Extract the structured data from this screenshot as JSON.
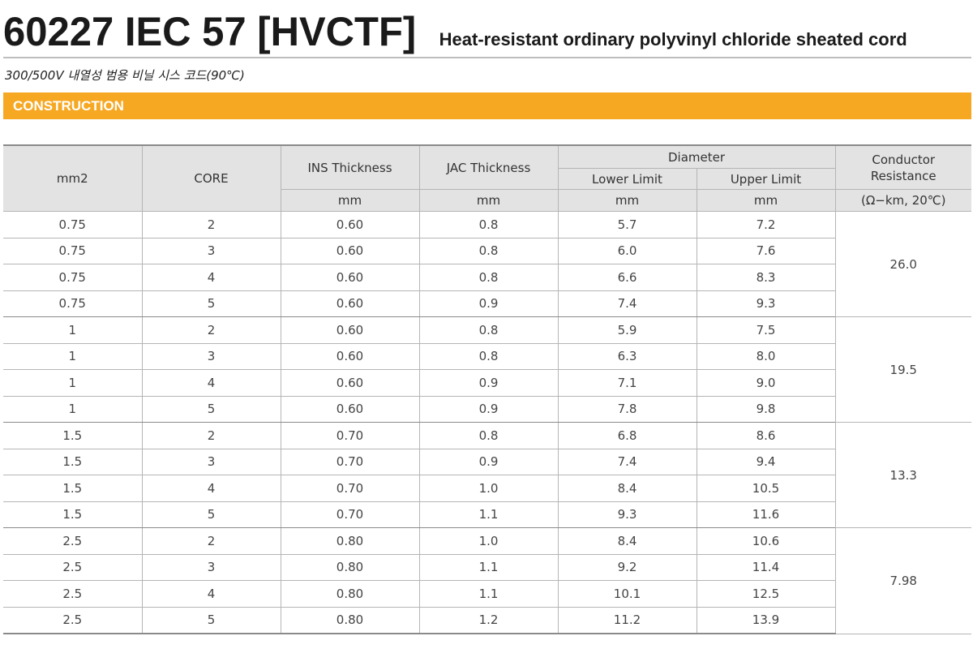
{
  "header": {
    "title": "60227 IEC 57 [HVCTF]",
    "title_sub": "Heat-resistant ordinary polyvinyl chloride sheated cord",
    "subtitle": "300/500V 내열성 범용 비닐 시스 코드(90℃)"
  },
  "section": {
    "label": "CONSTRUCTION"
  },
  "table": {
    "headers": {
      "mm2": "mm2",
      "core": "CORE",
      "ins": "INS Thickness",
      "jac": "JAC Thickness",
      "diameter": "Diameter",
      "lower": "Lower Limit",
      "upper": "Upper Limit",
      "resistance_line1": "Conductor",
      "resistance_line2": "Resistance",
      "unit_ins": "mm",
      "unit_jac": "mm",
      "unit_lower": "mm",
      "unit_upper": "mm",
      "unit_resistance": "(Ω−km, 20℃)"
    },
    "rows": [
      [
        "0.75",
        "2",
        "0.60",
        "0.8",
        "5.7",
        "7.2"
      ],
      [
        "0.75",
        "3",
        "0.60",
        "0.8",
        "6.0",
        "7.6"
      ],
      [
        "0.75",
        "4",
        "0.60",
        "0.8",
        "6.6",
        "8.3"
      ],
      [
        "0.75",
        "5",
        "0.60",
        "0.9",
        "7.4",
        "9.3"
      ],
      [
        "1",
        "2",
        "0.60",
        "0.8",
        "5.9",
        "7.5"
      ],
      [
        "1",
        "3",
        "0.60",
        "0.8",
        "6.3",
        "8.0"
      ],
      [
        "1",
        "4",
        "0.60",
        "0.9",
        "7.1",
        "9.0"
      ],
      [
        "1",
        "5",
        "0.60",
        "0.9",
        "7.8",
        "9.8"
      ],
      [
        "1.5",
        "2",
        "0.70",
        "0.8",
        "6.8",
        "8.6"
      ],
      [
        "1.5",
        "3",
        "0.70",
        "0.9",
        "7.4",
        "9.4"
      ],
      [
        "1.5",
        "4",
        "0.70",
        "1.0",
        "8.4",
        "10.5"
      ],
      [
        "1.5",
        "5",
        "0.70",
        "1.1",
        "9.3",
        "11.6"
      ],
      [
        "2.5",
        "2",
        "0.80",
        "1.0",
        "8.4",
        "10.6"
      ],
      [
        "2.5",
        "3",
        "0.80",
        "1.1",
        "9.2",
        "11.4"
      ],
      [
        "2.5",
        "4",
        "0.80",
        "1.1",
        "10.1",
        "12.5"
      ],
      [
        "2.5",
        "5",
        "0.80",
        "1.2",
        "11.2",
        "13.9"
      ]
    ],
    "resistance": [
      "26.0",
      "19.5",
      "13.3",
      "7.98"
    ]
  },
  "colors": {
    "section_bar": "#f6a823",
    "header_bg": "#e3e3e3"
  }
}
